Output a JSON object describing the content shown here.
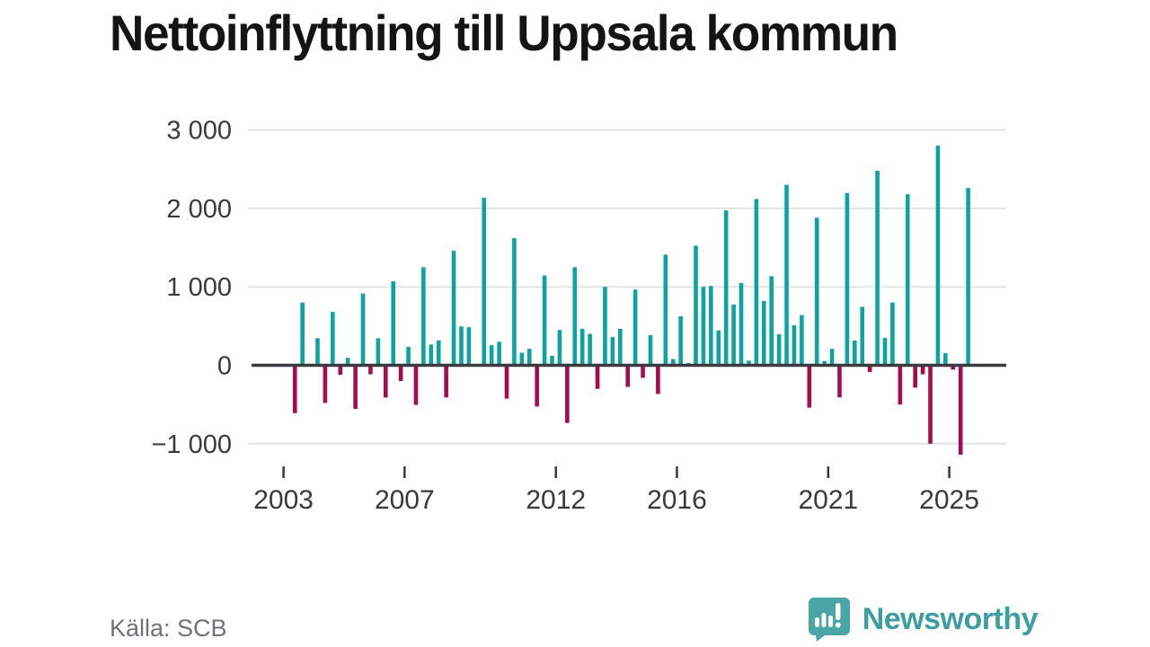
{
  "title": "Nettoinflyttning till Uppsala kommun",
  "footer": {
    "source_label": "Källa: SCB",
    "brand": "Newsworthy"
  },
  "colors": {
    "positive_bar": "#0ea3a1",
    "negative_bar": "#a30d4e",
    "gridline": "#e3e3e3",
    "zero_line": "#3b3b3f",
    "axis_text": "#3a3a3a",
    "title_text": "#141414",
    "source_text": "#70707a",
    "brand_teal": "#3c9ea0",
    "brand_bubble": "#4aa5a6"
  },
  "chart_data": {
    "type": "bar",
    "title": "Nettoinflyttning till Uppsala kommun",
    "xlabel": "",
    "ylabel": "",
    "frequency": "quarterly",
    "start_period": "2003 Q1",
    "end_period": "2025 Q3",
    "ylim": [
      -1000,
      3000
    ],
    "grid": true,
    "legend": "none",
    "y_ticks": [
      {
        "value": 3000,
        "label": "3 000"
      },
      {
        "value": 2000,
        "label": "2 000"
      },
      {
        "value": 1000,
        "label": "1 000"
      },
      {
        "value": 0,
        "label": "0"
      },
      {
        "value": -1000,
        "label": "−1 000"
      }
    ],
    "x_ticks": [
      {
        "year": 2003,
        "label": "2003"
      },
      {
        "year": 2007,
        "label": "2007"
      },
      {
        "year": 2012,
        "label": "2012"
      },
      {
        "year": 2016,
        "label": "2016"
      },
      {
        "year": 2021,
        "label": "2021"
      },
      {
        "year": 2025,
        "label": "2025"
      }
    ],
    "values": [
      0,
      -610,
      800,
      0,
      345,
      -480,
      680,
      -120,
      95,
      -555,
      915,
      -115,
      345,
      -410,
      1070,
      -200,
      235,
      -505,
      1250,
      265,
      315,
      -410,
      1460,
      495,
      485,
      0,
      2135,
      255,
      300,
      -425,
      1620,
      160,
      210,
      -525,
      1145,
      120,
      450,
      -735,
      1250,
      465,
      400,
      -300,
      1000,
      360,
      465,
      -275,
      965,
      -160,
      385,
      -365,
      1410,
      80,
      625,
      30,
      1525,
      1000,
      1010,
      445,
      1975,
      775,
      1050,
      60,
      2120,
      820,
      1135,
      395,
      2300,
      510,
      640,
      -540,
      1880,
      55,
      210,
      -410,
      2195,
      315,
      745,
      -85,
      2480,
      350,
      800,
      -500,
      2180,
      -285,
      -115,
      -1000,
      2800,
      155,
      -55,
      -1140,
      2260
    ]
  }
}
